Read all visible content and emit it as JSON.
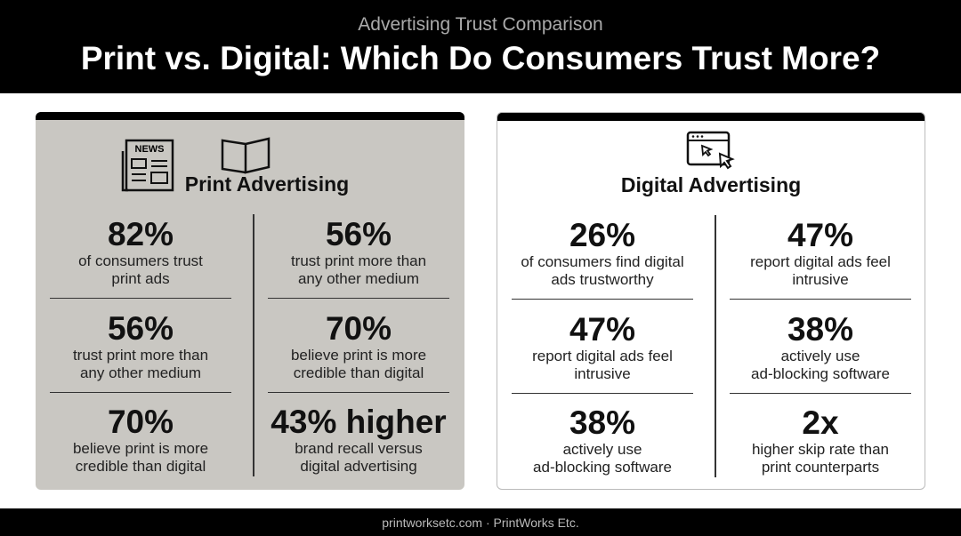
{
  "header": {
    "subtitle": "Advertising Trust Comparison",
    "title": "Print vs. Digital: Which Do Consumers Trust More?"
  },
  "panels": [
    {
      "heading": "Print Advertising",
      "icon_label": "NEWS",
      "columns": [
        [
          {
            "stat": "82%",
            "lines": [
              "of consumers trust",
              "print ads"
            ]
          },
          {
            "stat": "56%",
            "lines": [
              "trust print more than",
              "any other medium"
            ]
          },
          {
            "stat": "70%",
            "lines": [
              "believe print is more",
              "credible than digital"
            ]
          }
        ],
        [
          {
            "stat": "56%",
            "lines": [
              "trust print more than",
              "any other medium"
            ]
          },
          {
            "stat": "70%",
            "lines": [
              "believe print is more",
              "credible than digital"
            ]
          },
          {
            "stat": "43% higher",
            "lines": [
              "brand recall versus",
              "digital advertising"
            ]
          }
        ]
      ]
    },
    {
      "heading": "Digital Advertising",
      "columns": [
        [
          {
            "stat": "26%",
            "lines": [
              "of consumers find digital",
              "ads trustworthy"
            ]
          },
          {
            "stat": "47%",
            "lines": [
              "report digital ads feel",
              "intrusive"
            ]
          },
          {
            "stat": "38%",
            "lines": [
              "actively use",
              "ad-blocking software"
            ]
          }
        ],
        [
          {
            "stat": "47%",
            "lines": [
              "report digital ads feel",
              "intrusive"
            ]
          },
          {
            "stat": "38%",
            "lines": [
              "actively use",
              "ad-blocking software"
            ]
          },
          {
            "stat": "2x",
            "lines": [
              "higher skip rate than",
              "print counterparts"
            ]
          }
        ]
      ]
    }
  ],
  "footer": "printworksetc.com · PrintWorks Etc."
}
